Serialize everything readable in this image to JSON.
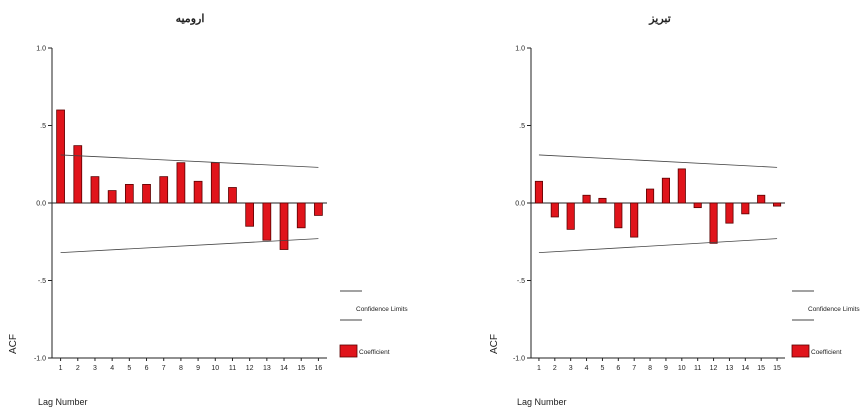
{
  "colors": {
    "bar_fill": "#e0141b",
    "bar_stroke": "#5a0000",
    "line": "#444444",
    "axis": "#222222"
  },
  "chart_data": [
    {
      "type": "bar",
      "title": "ارومیه",
      "xlabel": "Lag Number",
      "ylabel": "ACF",
      "ylim": [
        -1.0,
        1.0
      ],
      "y_ticks": [
        "1.0",
        ".5",
        "0.0",
        "-.5",
        "-1.0"
      ],
      "y_tick_values": [
        1.0,
        0.5,
        0.0,
        -0.5,
        -1.0
      ],
      "categories": [
        "1",
        "2",
        "3",
        "4",
        "5",
        "6",
        "7",
        "8",
        "9",
        "10",
        "11",
        "12",
        "13",
        "14",
        "15",
        "16"
      ],
      "series": [
        {
          "name": "Coefficient",
          "values": [
            0.6,
            0.37,
            0.17,
            0.08,
            0.12,
            0.12,
            0.17,
            0.26,
            0.14,
            0.26,
            0.1,
            -0.15,
            -0.24,
            -0.3,
            -0.16,
            -0.08
          ]
        }
      ],
      "confidence": {
        "upper": [
          0.31,
          0.23
        ],
        "lower": [
          -0.32,
          -0.23
        ]
      },
      "legend": {
        "confidence_label": "Confidence Limits",
        "coefficient_label": "Coefficient"
      }
    },
    {
      "type": "bar",
      "title": "تبریز",
      "xlabel": "Lag Number",
      "ylabel": "ACF",
      "ylim": [
        -1.0,
        1.0
      ],
      "y_ticks": [
        "1.0",
        ".5",
        "0.0",
        "-.5",
        "-1.0"
      ],
      "y_tick_values": [
        1.0,
        0.5,
        0.0,
        -0.5,
        -1.0
      ],
      "categories": [
        "1",
        "2",
        "3",
        "4",
        "5",
        "6",
        "7",
        "8",
        "9",
        "10",
        "11",
        "12",
        "13",
        "14",
        "15",
        "15"
      ],
      "series": [
        {
          "name": "Coefficient",
          "values": [
            0.14,
            -0.09,
            -0.17,
            0.05,
            0.03,
            -0.16,
            -0.22,
            0.09,
            0.16,
            0.22,
            -0.03,
            -0.26,
            -0.13,
            -0.07,
            0.05,
            -0.02
          ]
        }
      ],
      "confidence": {
        "upper": [
          0.31,
          0.23
        ],
        "lower": [
          -0.32,
          -0.23
        ]
      },
      "legend": {
        "confidence_label": "Confidence Limits",
        "coefficient_label": "Coefficient"
      }
    }
  ]
}
